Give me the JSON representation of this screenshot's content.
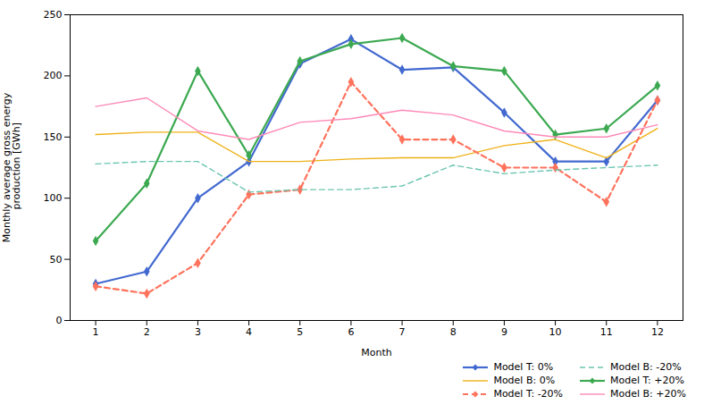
{
  "chart_data": {
    "type": "line",
    "x": [
      1,
      2,
      3,
      4,
      5,
      6,
      7,
      8,
      9,
      10,
      11,
      12
    ],
    "xlabel": "Month",
    "ylabel": "Monthly average gross energy\n production [GWh]",
    "xlim": [
      0.5,
      12.5
    ],
    "xticks": [
      1,
      2,
      3,
      4,
      5,
      6,
      7,
      8,
      9,
      10,
      11,
      12
    ],
    "ylim": [
      0,
      250
    ],
    "yticks": [
      0,
      50,
      100,
      150,
      200,
      250
    ],
    "grid": false,
    "legend": "lower right",
    "series": [
      {
        "name": "Model T: 0%",
        "values": [
          30,
          40,
          100,
          130,
          210,
          230,
          205,
          207,
          170,
          130,
          130,
          180
        ],
        "line_style": "solid",
        "marker": "diamond"
      },
      {
        "name": "Model B: 0%",
        "values": [
          152,
          154,
          154,
          130,
          130,
          132,
          133,
          133,
          143,
          148,
          133,
          157
        ],
        "line_style": "solid",
        "marker": "none"
      },
      {
        "name": "Model T: -20%",
        "values": [
          28,
          22,
          47,
          103,
          107,
          195,
          148,
          148,
          125,
          125,
          97,
          180
        ],
        "line_style": "dashed",
        "marker": "diamond"
      },
      {
        "name": "Model B: -20%",
        "values": [
          128,
          130,
          130,
          105,
          107,
          107,
          110,
          127,
          120,
          123,
          125,
          127
        ],
        "line_style": "dashed",
        "marker": "none"
      },
      {
        "name": "Model T: +20%",
        "values": [
          65,
          112,
          204,
          135,
          212,
          226,
          231,
          208,
          204,
          152,
          157,
          192
        ],
        "line_style": "solid",
        "marker": "diamond"
      },
      {
        "name": "Model B: +20%",
        "values": [
          175,
          182,
          155,
          148,
          162,
          165,
          172,
          168,
          155,
          150,
          150,
          160
        ],
        "line_style": "solid",
        "marker": "none"
      }
    ]
  }
}
